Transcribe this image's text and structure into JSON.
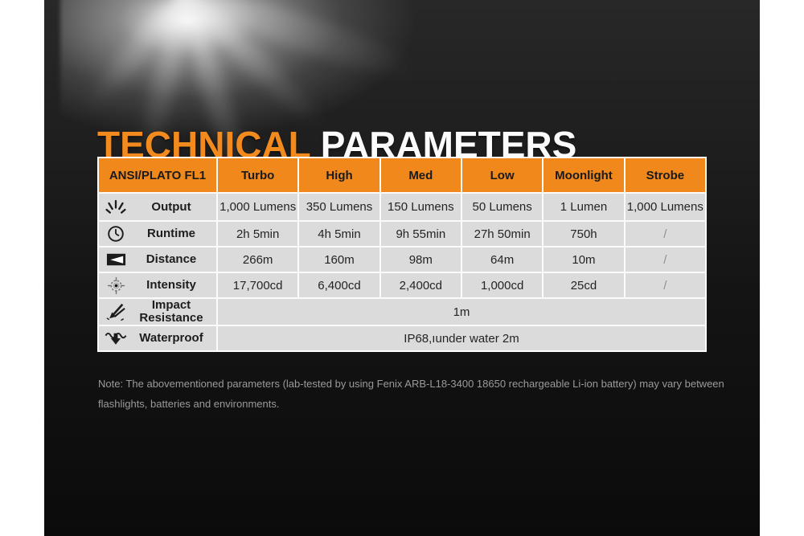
{
  "title": {
    "part1": "TECHNICAL",
    "part2": " PARAMETERS"
  },
  "table": {
    "header": [
      "ANSI/PLATO FL1",
      "Turbo",
      "High",
      "Med",
      "Low",
      "Moonlight",
      "Strobe"
    ],
    "rows": [
      {
        "icon": "output-icon",
        "label": "Output",
        "values": [
          "1,000 Lumens",
          "350 Lumens",
          "150 Lumens",
          "50 Lumens",
          "1 Lumen",
          "1,000 Lumens"
        ]
      },
      {
        "icon": "runtime-icon",
        "label": "Runtime",
        "values": [
          "2h 5min",
          "4h 5min",
          "9h 55min",
          "27h 50min",
          "750h",
          "/"
        ]
      },
      {
        "icon": "distance-icon",
        "label": "Distance",
        "values": [
          "266m",
          "160m",
          "98m",
          "64m",
          "10m",
          "/"
        ]
      },
      {
        "icon": "intensity-icon",
        "label": "Intensity",
        "values": [
          "17,700cd",
          "6,400cd",
          "2,400cd",
          "1,000cd",
          "25cd",
          "/"
        ]
      },
      {
        "icon": "impact-icon",
        "label": "Impact Resistance",
        "merged": "1m"
      },
      {
        "icon": "waterproof-icon",
        "label": "Waterproof",
        "merged": "IP68,ıunder water 2m"
      }
    ]
  },
  "note": {
    "text": "Note: The abovementioned parameters (lab-tested by using Fenix ARB-L18-3400 18650 rechargeable Li-ion battery) may vary between flashlights, batteries and environments."
  },
  "colors": {
    "accent_orange": "#F0881C",
    "title_orange": "#F28A1E",
    "title_white": "#FBFBFB",
    "cell_gray": "#DBDBDB",
    "separator_white": "#FBFBFB",
    "note_gray": "#9A9A9A",
    "background_dark": "#141414",
    "page_white": "#FFFFFF"
  }
}
